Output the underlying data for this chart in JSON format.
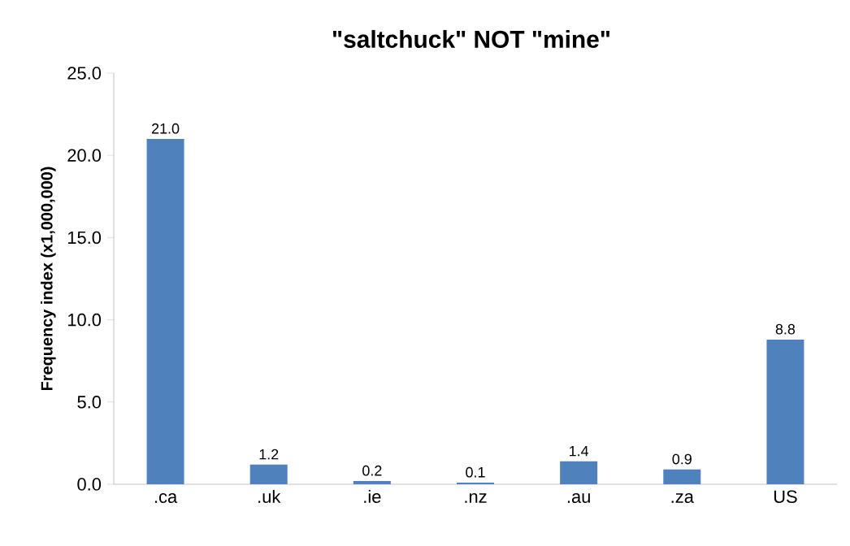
{
  "chart_data": {
    "type": "bar",
    "title": "\"saltchuck\" NOT \"mine\"",
    "ylabel": "Frequency index (x1,000,000)",
    "categories": [
      ".ca",
      ".uk",
      ".ie",
      ".nz",
      ".au",
      ".za",
      "US"
    ],
    "values": [
      21.0,
      1.2,
      0.2,
      0.1,
      1.4,
      0.9,
      8.8
    ],
    "value_labels": [
      "21.0",
      "1.2",
      "0.2",
      "0.1",
      "1.4",
      "0.9",
      "8.8"
    ],
    "color": "#4f81bd",
    "ylim": [
      0,
      25
    ],
    "yticks": [
      {
        "value": 0,
        "label": "0.0"
      },
      {
        "value": 5,
        "label": "5.0"
      },
      {
        "value": 10,
        "label": "10.0"
      },
      {
        "value": 15,
        "label": "15.0"
      },
      {
        "value": 20,
        "label": "20.0"
      },
      {
        "value": 25,
        "label": "25.0"
      }
    ],
    "grid": false
  }
}
